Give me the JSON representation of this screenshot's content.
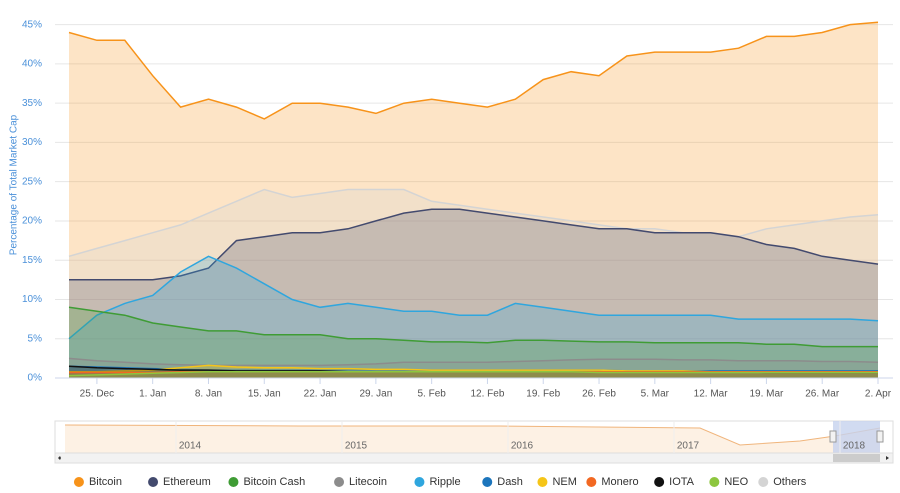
{
  "chart_data": {
    "type": "area",
    "ylabel": "Percentage of Total Market Cap",
    "categories": [
      null,
      "25. Dec",
      null,
      "1. Jan",
      null,
      "8. Jan",
      null,
      "15. Jan",
      null,
      "22. Jan",
      null,
      "29. Jan",
      null,
      "5. Feb",
      null,
      "12. Feb",
      null,
      "19. Feb",
      null,
      "26. Feb",
      null,
      "5. Mar",
      null,
      "12. Mar",
      null,
      "19. Mar",
      null,
      "26. Mar",
      null,
      "2. Apr"
    ],
    "ylim": [
      0,
      47.5
    ],
    "yticks": [
      {
        "value": 0,
        "label": "0%"
      },
      {
        "value": 5,
        "label": "5%"
      },
      {
        "value": 10,
        "label": "10%"
      },
      {
        "value": 15,
        "label": "15%"
      },
      {
        "value": 20,
        "label": "20%"
      },
      {
        "value": 25,
        "label": "25%"
      },
      {
        "value": 30,
        "label": "30%"
      },
      {
        "value": 35,
        "label": "35%"
      },
      {
        "value": 40,
        "label": "40%"
      },
      {
        "value": 45,
        "label": "45%"
      }
    ],
    "grid": true,
    "legend": "bottom",
    "series": [
      {
        "name": "Bitcoin",
        "color": "#f7931a",
        "values": [
          44,
          43,
          43,
          38.5,
          34.5,
          35.5,
          34.5,
          33,
          35,
          35,
          34.5,
          33.7,
          35,
          35.5,
          35,
          34.5,
          35.5,
          38,
          39,
          38.5,
          41,
          41.5,
          41.5,
          41.5,
          42,
          43.5,
          43.5,
          44,
          45,
          45.3
        ]
      },
      {
        "name": "Ethereum",
        "color": "#434a6e",
        "values": [
          12.5,
          12.5,
          12.5,
          12.5,
          13,
          14,
          17.5,
          18,
          18.5,
          18.5,
          19,
          20,
          21,
          21.5,
          21.5,
          21,
          20.5,
          20,
          19.5,
          19,
          19,
          18.5,
          18.5,
          18.5,
          18,
          17,
          16.5,
          15.5,
          15,
          14.5
        ]
      },
      {
        "name": "Bitcoin Cash",
        "color": "#3f9c35",
        "values": [
          9,
          8.5,
          8,
          7,
          6.5,
          6,
          6,
          5.5,
          5.5,
          5.5,
          5,
          5,
          4.8,
          4.6,
          4.6,
          4.5,
          4.8,
          4.8,
          4.7,
          4.6,
          4.6,
          4.5,
          4.5,
          4.5,
          4.5,
          4.3,
          4.3,
          4,
          4,
          4
        ]
      },
      {
        "name": "Litecoin",
        "color": "#8c8c8c",
        "values": [
          2.5,
          2.2,
          2,
          1.8,
          1.7,
          1.6,
          1.6,
          1.6,
          1.6,
          1.6,
          1.7,
          1.8,
          2,
          2,
          2,
          2,
          2.1,
          2.2,
          2.3,
          2.4,
          2.4,
          2.4,
          2.3,
          2.3,
          2.2,
          2.2,
          2.2,
          2.1,
          2.1,
          2
        ]
      },
      {
        "name": "Ripple",
        "color": "#2fa6de",
        "values": [
          5,
          8,
          9.5,
          10.5,
          13.5,
          15.5,
          14,
          12,
          10,
          9,
          9.5,
          9,
          8.5,
          8.5,
          8,
          8,
          9.5,
          9,
          8.5,
          8,
          8,
          8,
          8,
          8,
          7.5,
          7.5,
          7.5,
          7.5,
          7.5,
          7.3
        ]
      },
      {
        "name": "Dash",
        "color": "#1c75bc",
        "values": [
          1.5,
          1.4,
          1.3,
          1.2,
          1.1,
          1,
          1,
          1,
          1,
          1,
          1,
          1,
          1,
          1,
          1,
          1,
          1,
          1,
          1,
          1,
          0.9,
          0.9,
          0.9,
          0.9,
          0.9,
          0.9,
          0.9,
          0.9,
          0.9,
          0.9
        ]
      },
      {
        "name": "NEM",
        "color": "#f5c518",
        "values": [
          0.8,
          0.8,
          0.9,
          1,
          1.3,
          1.6,
          1.4,
          1.3,
          1.3,
          1.2,
          1.2,
          1.1,
          1.1,
          1,
          1,
          1,
          1,
          1,
          1,
          1,
          0.9,
          0.9,
          0.9,
          0.8,
          0.8,
          0.8,
          0.8,
          0.8,
          0.8,
          0.8
        ]
      },
      {
        "name": "Monero",
        "color": "#f26822",
        "values": [
          0.7,
          0.7,
          0.7,
          0.7,
          0.8,
          0.8,
          0.8,
          0.8,
          0.8,
          0.8,
          0.8,
          0.8,
          0.8,
          0.8,
          0.8,
          0.8,
          0.8,
          0.8,
          0.8,
          0.8,
          0.8,
          0.8,
          0.8,
          0.8,
          0.8,
          0.8,
          0.8,
          0.8,
          0.8,
          0.8
        ]
      },
      {
        "name": "IOTA",
        "color": "#111111",
        "values": [
          1.5,
          1.3,
          1.2,
          1.1,
          1,
          1,
          0.9,
          0.9,
          0.9,
          0.9,
          0.8,
          0.8,
          0.8,
          0.8,
          0.8,
          0.8,
          0.8,
          0.8,
          0.8,
          0.8,
          0.8,
          0.8,
          0.8,
          0.8,
          0.8,
          0.7,
          0.7,
          0.7,
          0.7,
          0.7
        ]
      },
      {
        "name": "NEO",
        "color": "#8dc63f",
        "values": [
          0.3,
          0.4,
          0.5,
          0.6,
          0.7,
          0.8,
          0.8,
          0.8,
          0.8,
          0.8,
          0.8,
          0.8,
          0.8,
          0.8,
          0.8,
          0.8,
          0.8,
          0.8,
          0.8,
          0.7,
          0.7,
          0.7,
          0.7,
          0.7,
          0.7,
          0.7,
          0.7,
          0.7,
          0.7,
          0.7
        ]
      },
      {
        "name": "Others",
        "color": "#d4d4d4",
        "values": [
          15.5,
          16.5,
          17.5,
          18.5,
          19.5,
          21,
          22.5,
          24,
          23,
          23.5,
          24,
          24,
          24,
          22.5,
          22,
          21.5,
          21,
          20.5,
          20,
          19.5,
          19,
          19,
          18.5,
          18.5,
          18,
          19,
          19.5,
          20,
          20.5,
          20.8
        ]
      }
    ],
    "navigator": {
      "labels": [
        "2014",
        "2015",
        "2016",
        "2017",
        "2018"
      ]
    }
  }
}
